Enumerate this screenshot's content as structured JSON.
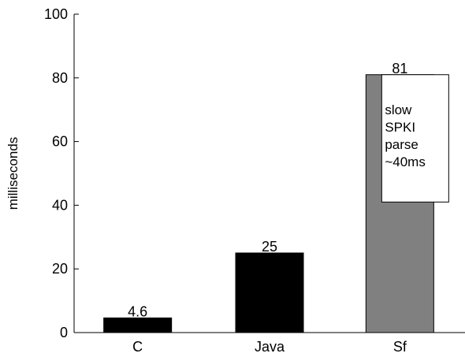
{
  "chart_data": {
    "type": "bar",
    "title": "",
    "xlabel": "",
    "ylabel": "milliseconds",
    "ylim": [
      0,
      100
    ],
    "yticks": [
      0,
      20,
      40,
      60,
      80,
      100
    ],
    "grid": false,
    "categories": [
      "C",
      "Java",
      "Sf"
    ],
    "values": [
      4.6,
      25,
      81
    ],
    "value_labels": [
      "4.6",
      "25",
      "81"
    ],
    "bar_colors": [
      "#000000",
      "#000000",
      "#808080"
    ],
    "annotation": {
      "category": "Sf",
      "y_top": 81,
      "y_bottom": 41,
      "lines": [
        "slow",
        "SPKI",
        "parse",
        "~40ms"
      ]
    }
  }
}
